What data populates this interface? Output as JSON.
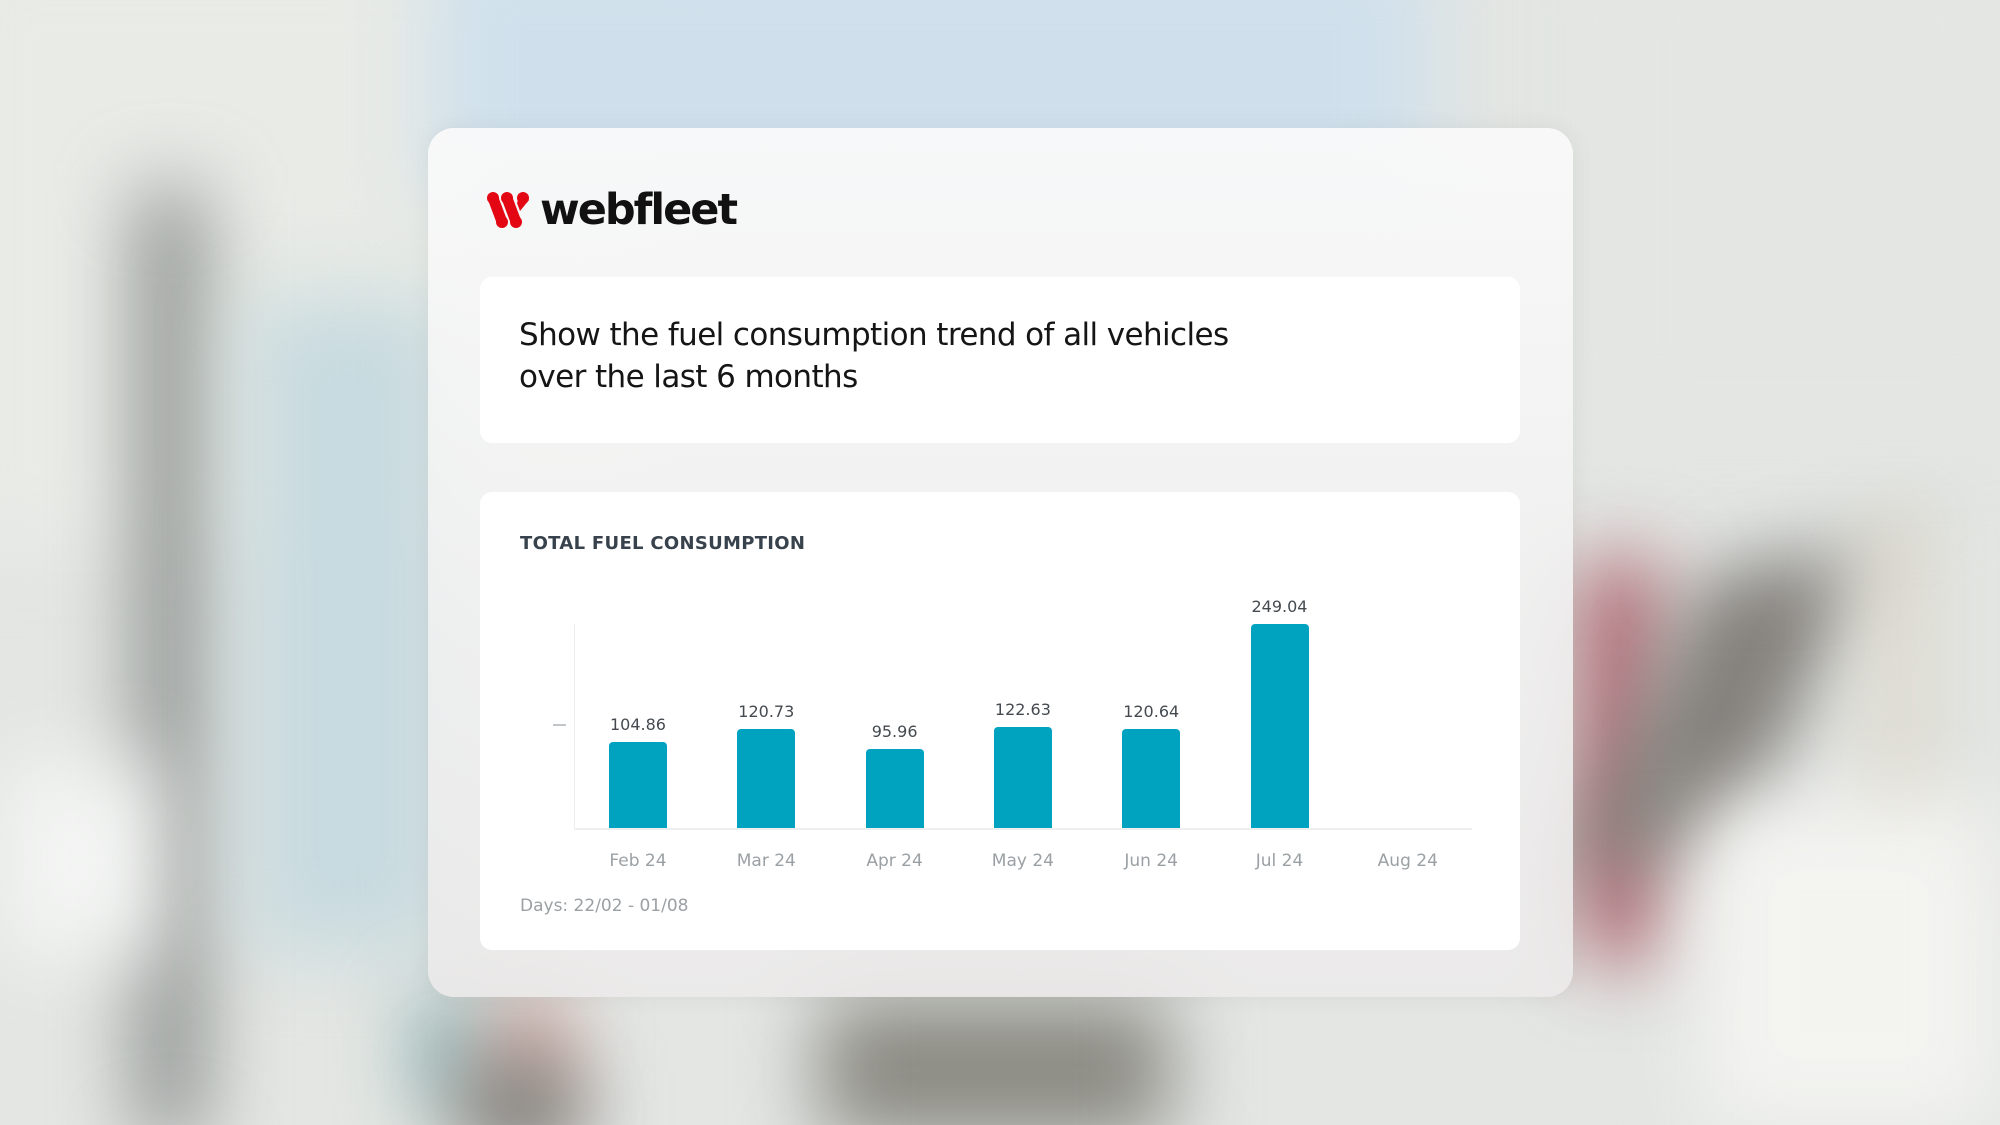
{
  "brand": {
    "name": "webfleet",
    "logo_icon": "webfleet-w-mark-icon",
    "accent_color": "#e30613"
  },
  "prompt": {
    "text_line1": "Show the fuel consumption trend of all vehicles",
    "text_line2": "over the last 6 months"
  },
  "chart_card": {
    "title": "TOTAL FUEL CONSUMPTION",
    "footer": "Days: 22/02 - 01/08",
    "bar_color": "#00a3bf"
  },
  "chart_data": {
    "type": "bar",
    "title": "TOTAL FUEL CONSUMPTION",
    "categories": [
      "Feb 24",
      "Mar 24",
      "Apr 24",
      "May 24",
      "Jun 24",
      "Jul 24",
      "Aug 24"
    ],
    "values": [
      104.86,
      120.73,
      95.96,
      122.63,
      120.64,
      249.04,
      null
    ],
    "value_labels": [
      "104.86",
      "120.73",
      "95.96",
      "122.63",
      "120.64",
      "249.04",
      ""
    ],
    "xlabel": "",
    "ylabel": "",
    "ylim": [
      0,
      250
    ],
    "y_ticks_visible": false,
    "grid": false,
    "legend": "none",
    "annotation": "Days: 22/02 - 01/08"
  }
}
